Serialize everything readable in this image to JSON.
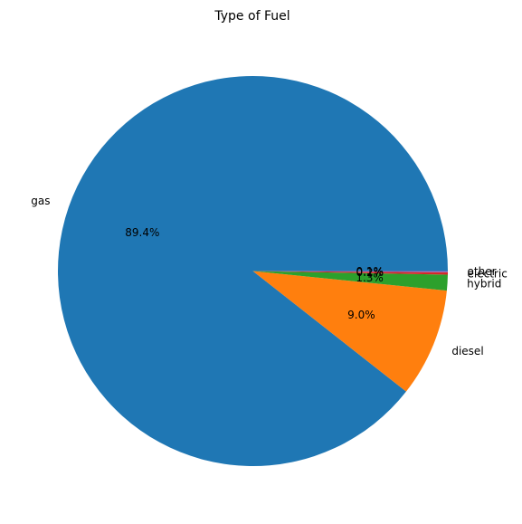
{
  "chart_data": {
    "type": "pie",
    "title": "Type of Fuel",
    "categories": [
      "gas",
      "diesel",
      "hybrid",
      "electric",
      "other"
    ],
    "values": [
      89.4,
      9.0,
      1.3,
      0.2,
      0.1
    ],
    "percent_labels": [
      "89.4%",
      "9.0%",
      "1.3%",
      "0.2%",
      "0.1%"
    ],
    "colors": [
      "#1f77b4",
      "#ff7f0e",
      "#2ca02c",
      "#d62728",
      "#9467bd"
    ],
    "start_angle_deg": 0,
    "direction": "counterclockwise"
  }
}
